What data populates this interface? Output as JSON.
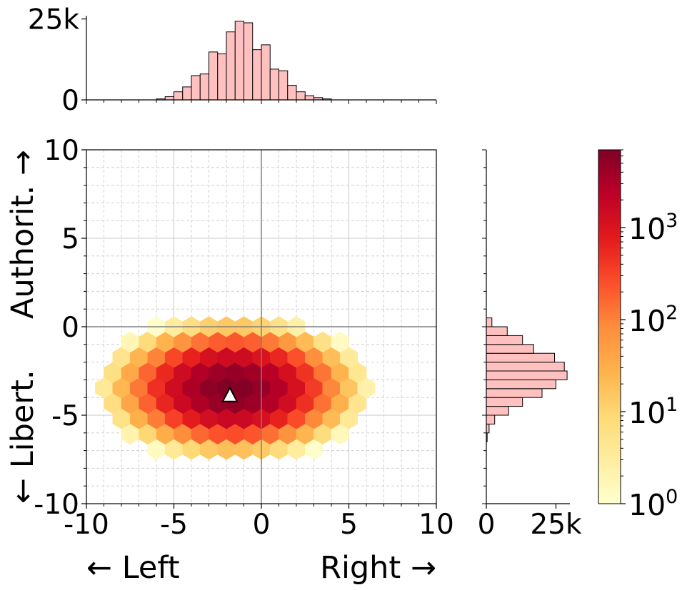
{
  "chart_data": {
    "type": "heatmap",
    "subtype": "hexbin-with-marginal-histograms",
    "main": {
      "xlim": [
        -10,
        10
      ],
      "ylim": [
        -10,
        10
      ],
      "x_ticks": [
        "-10",
        "-5",
        "0",
        "5",
        "10"
      ],
      "y_ticks": [
        "-10",
        "-5",
        "0",
        "5",
        "10"
      ],
      "x_tick_values": [
        -10,
        -5,
        0,
        5,
        10
      ],
      "y_tick_values": [
        -10,
        -5,
        0,
        5,
        10
      ],
      "grid": true,
      "minor_grid": true,
      "zero_lines": true,
      "x_label_left": "← Left",
      "x_label_right": "Right →",
      "y_label_bottom": "← Libert.",
      "y_label_top": "Authorit. →",
      "hexbin": {
        "gridsize_x_units": 1.0,
        "density": {
          "center": [
            -1.6,
            -3.5
          ],
          "sigma_x": 1.9,
          "sigma_y": 1.0,
          "peak_count": 7000,
          "min_count": 1
        },
        "scale": "log"
      },
      "marker": {
        "shape": "triangle",
        "x": -1.8,
        "y": -3.9,
        "fill": "#ffffff",
        "edge": "#000000"
      }
    },
    "top_histogram": {
      "y_ticks": [
        "0",
        "25k"
      ],
      "y_tick_values": [
        0,
        25000
      ],
      "ylim": [
        0,
        26000
      ],
      "bin_width": 0.5,
      "bins_start": [
        -6.0,
        -5.5,
        -5.0,
        -4.5,
        -4.0,
        -3.5,
        -3.0,
        -2.5,
        -2.0,
        -1.5,
        -1.0,
        -0.5,
        0.0,
        0.5,
        1.0,
        1.5,
        2.0,
        2.5,
        3.0,
        3.5
      ],
      "counts": [
        300,
        1000,
        2500,
        4000,
        7500,
        8000,
        14800,
        14200,
        21000,
        24300,
        23800,
        15500,
        17000,
        9500,
        9000,
        4500,
        2500,
        1300,
        700,
        300
      ],
      "fill": "#ffc0c0",
      "edge": "#000000"
    },
    "right_histogram": {
      "x_ticks": [
        "0",
        "25k"
      ],
      "x_tick_values": [
        0,
        25000
      ],
      "xlim": [
        0,
        30000
      ],
      "bin_width": 0.5,
      "bins_start": [
        -6.5,
        -6.0,
        -5.5,
        -5.0,
        -4.5,
        -4.0,
        -3.5,
        -3.0,
        -2.5,
        -2.0,
        -1.5,
        -1.0,
        -0.5,
        0.0
      ],
      "counts": [
        300,
        1000,
        3000,
        8000,
        13000,
        20000,
        25000,
        29000,
        28000,
        24500,
        17000,
        13000,
        7500,
        2000
      ],
      "fill": "#ffc0c0",
      "edge": "#000000"
    },
    "colorbar": {
      "scale": "log",
      "range": [
        1,
        7000
      ],
      "ticks": [
        {
          "base": "10",
          "exp": "0",
          "value": 1
        },
        {
          "base": "10",
          "exp": "1",
          "value": 10
        },
        {
          "base": "10",
          "exp": "2",
          "value": 100
        },
        {
          "base": "10",
          "exp": "3",
          "value": 1000
        }
      ],
      "colormap": "YlOrRd",
      "stops": [
        "#ffffcc",
        "#ffeda0",
        "#fed976",
        "#feb24c",
        "#fd8d3c",
        "#fc4e2a",
        "#e31a1c",
        "#bd0026",
        "#800026"
      ]
    }
  }
}
